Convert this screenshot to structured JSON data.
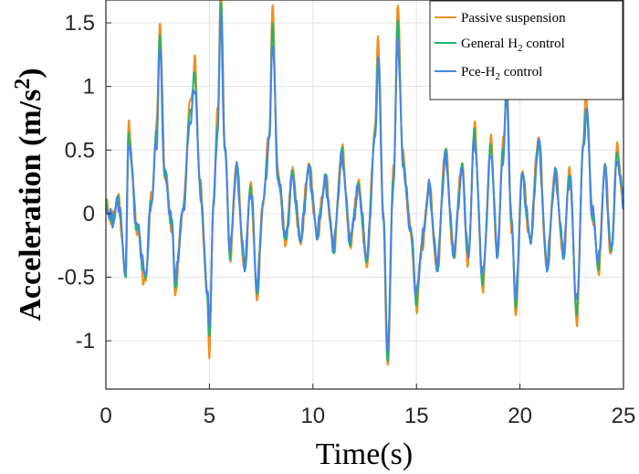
{
  "chart_data": {
    "type": "line",
    "title": "",
    "xlabel": "Time(s)",
    "ylabel": "Acceleration (m/s",
    "ylabel_sup": "2",
    "ylabel_close": ")",
    "xlim": [
      0,
      25
    ],
    "ylim": [
      -1.38,
      1.68
    ],
    "xticks": [
      0,
      5,
      10,
      15,
      20,
      25
    ],
    "xtick_labels": [
      "0",
      "5",
      "10",
      "15",
      "20",
      "25"
    ],
    "yticks": [
      -1,
      -0.5,
      0,
      0.5,
      1,
      1.5
    ],
    "ytick_labels": [
      "-1",
      "-0.5",
      "0",
      "0.5",
      "1",
      "1.5"
    ],
    "grid": true,
    "legend_position": "top-right",
    "legend": [
      {
        "pre": "Passive suspension",
        "sub": "",
        "post": ""
      },
      {
        "pre": "General H",
        "sub": "2",
        "post": " control"
      },
      {
        "pre": "Pce-H",
        "sub": "2",
        "post": " control"
      }
    ],
    "peaks": [
      [
        0.0,
        0.05
      ],
      [
        0.3,
        -0.05
      ],
      [
        0.6,
        0.1
      ],
      [
        0.95,
        -0.45
      ],
      [
        1.1,
        0.6
      ],
      [
        1.5,
        -0.1
      ],
      [
        1.9,
        -0.5
      ],
      [
        2.2,
        0.1
      ],
      [
        2.45,
        0.6
      ],
      [
        2.6,
        1.35
      ],
      [
        2.85,
        0.3
      ],
      [
        3.2,
        -0.1
      ],
      [
        3.35,
        -0.55
      ],
      [
        3.7,
        0.0
      ],
      [
        4.1,
        0.8
      ],
      [
        4.3,
        1.05
      ],
      [
        4.55,
        0.2
      ],
      [
        4.9,
        -0.6
      ],
      [
        5.0,
        -0.97
      ],
      [
        5.2,
        0.1
      ],
      [
        5.4,
        0.7
      ],
      [
        5.55,
        1.6
      ],
      [
        5.75,
        0.5
      ],
      [
        6.0,
        -0.3
      ],
      [
        6.3,
        0.35
      ],
      [
        6.7,
        -0.4
      ],
      [
        7.0,
        0.2
      ],
      [
        7.3,
        -0.6
      ],
      [
        7.6,
        0.1
      ],
      [
        7.9,
        0.6
      ],
      [
        8.05,
        1.45
      ],
      [
        8.3,
        0.3
      ],
      [
        8.7,
        -0.2
      ],
      [
        9.0,
        0.3
      ],
      [
        9.4,
        -0.2
      ],
      [
        9.8,
        0.35
      ],
      [
        10.2,
        -0.15
      ],
      [
        10.6,
        0.25
      ],
      [
        11.0,
        -0.25
      ],
      [
        11.4,
        0.45
      ],
      [
        11.8,
        -0.2
      ],
      [
        12.2,
        0.2
      ],
      [
        12.6,
        -0.35
      ],
      [
        13.0,
        0.6
      ],
      [
        13.15,
        1.25
      ],
      [
        13.4,
        0.0
      ],
      [
        13.6,
        -1.1
      ],
      [
        13.9,
        0.3
      ],
      [
        14.1,
        1.45
      ],
      [
        14.35,
        0.4
      ],
      [
        14.7,
        -0.1
      ],
      [
        15.0,
        -0.65
      ],
      [
        15.3,
        -0.2
      ],
      [
        15.6,
        0.2
      ],
      [
        16.0,
        -0.4
      ],
      [
        16.4,
        0.45
      ],
      [
        16.8,
        -0.3
      ],
      [
        17.2,
        0.35
      ],
      [
        17.5,
        -0.35
      ],
      [
        17.8,
        0.6
      ],
      [
        18.2,
        -0.5
      ],
      [
        18.6,
        0.5
      ],
      [
        18.9,
        -0.3
      ],
      [
        19.2,
        0.5
      ],
      [
        19.35,
        0.95
      ],
      [
        19.6,
        -0.1
      ],
      [
        19.8,
        -0.7
      ],
      [
        20.1,
        0.3
      ],
      [
        20.5,
        -0.2
      ],
      [
        20.9,
        0.55
      ],
      [
        21.3,
        -0.4
      ],
      [
        21.7,
        0.3
      ],
      [
        22.1,
        -0.3
      ],
      [
        22.4,
        0.3
      ],
      [
        22.75,
        -0.75
      ],
      [
        23.05,
        0.5
      ],
      [
        23.2,
        0.85
      ],
      [
        23.5,
        0.0
      ],
      [
        23.8,
        -0.4
      ],
      [
        24.1,
        0.35
      ],
      [
        24.4,
        -0.3
      ],
      [
        24.7,
        0.45
      ],
      [
        25.0,
        0.1
      ]
    ],
    "series": [
      {
        "name": "Passive suspension",
        "color": "#F28E1E",
        "scale": 1.12,
        "offset": 0.0,
        "jitter": 0.07
      },
      {
        "name": "General H2 control",
        "color": "#21B572",
        "scale": 1.03,
        "offset": 0.0,
        "jitter": 0.06
      },
      {
        "name": "Pce-H2 control",
        "color": "#4A84E6",
        "scale": 0.95,
        "offset": 0.0,
        "jitter": 0.08
      }
    ]
  }
}
